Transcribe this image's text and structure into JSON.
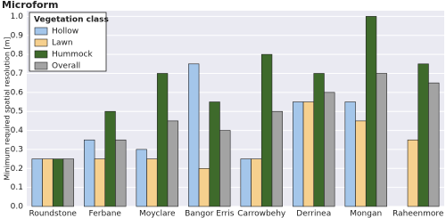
{
  "chart_data": {
    "type": "bar",
    "title": "Microform",
    "ylabel": "Minimum required spatial resolution [m]",
    "legend_title": "Vegetation class",
    "legend": "upper left",
    "grid": true,
    "categories": [
      "Roundstone",
      "Ferbane",
      "Moyclare",
      "Bangor Erris",
      "Carrowbehy",
      "Derrinea",
      "Mongan",
      "Raheenmore"
    ],
    "series": [
      {
        "name": "Hollow",
        "color": "#a4c6ea",
        "values": [
          0.25,
          0.35,
          0.3,
          0.75,
          0.25,
          0.55,
          0.55,
          null
        ]
      },
      {
        "name": "Lawn",
        "color": "#f6d08e",
        "values": [
          0.25,
          0.25,
          0.25,
          0.2,
          0.25,
          0.55,
          0.45,
          0.35
        ]
      },
      {
        "name": "Hummock",
        "color": "#3e6a2b",
        "values": [
          0.25,
          0.5,
          0.7,
          0.55,
          0.8,
          0.7,
          1.0,
          0.75
        ]
      },
      {
        "name": "Overall",
        "color": "#a3a3a3",
        "values": [
          0.25,
          0.35,
          0.45,
          0.4,
          0.5,
          0.6,
          0.7,
          0.65
        ]
      }
    ],
    "ylim": [
      0,
      1.03
    ],
    "yticks": [
      {
        "value": 0,
        "label": "0.0"
      },
      0.1,
      0.2,
      0.3,
      0.4,
      0.5,
      0.6,
      0.7,
      0.8,
      0.9,
      {
        "value": 1,
        "label": "1.0"
      }
    ]
  }
}
